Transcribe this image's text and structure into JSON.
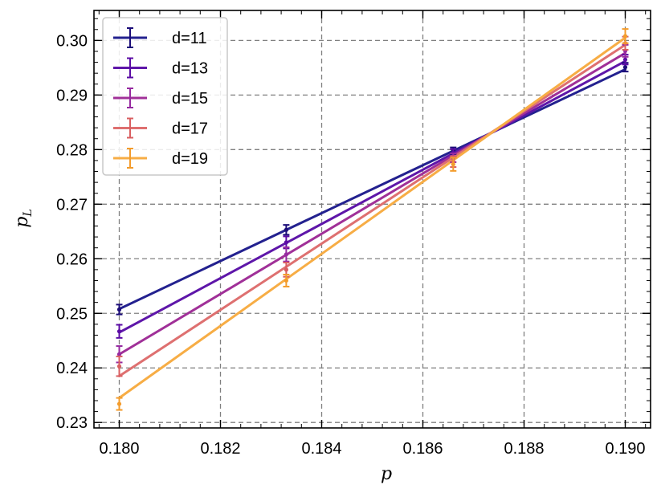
{
  "chart_data": {
    "type": "line",
    "xlabel": "p",
    "ylabel": "p",
    "ylabel_subscript": "L",
    "xlim": [
      0.1795,
      0.1905
    ],
    "ylim": [
      0.229,
      0.3055
    ],
    "xticks": [
      0.18,
      0.182,
      0.184,
      0.186,
      0.188,
      0.19
    ],
    "xtick_labels": [
      "0.180",
      "0.182",
      "0.184",
      "0.186",
      "0.188",
      "0.190"
    ],
    "yticks": [
      0.23,
      0.24,
      0.25,
      0.26,
      0.27,
      0.28,
      0.29,
      0.3
    ],
    "ytick_labels": [
      "0.23",
      "0.24",
      "0.25",
      "0.26",
      "0.27",
      "0.28",
      "0.29",
      "0.30"
    ],
    "grid": true,
    "legend_position": "top-left",
    "x": [
      0.18,
      0.1833,
      0.1866,
      0.19
    ],
    "series": [
      {
        "name": "d=11",
        "color": "#1b0c78",
        "line_color": "#23218f",
        "values": [
          0.2507,
          0.2653,
          0.2798,
          0.2951
        ],
        "errors": [
          0.0009,
          0.0009,
          0.0006,
          0.0008
        ],
        "fit": [
          [
            0.18,
            0.2508
          ],
          [
            0.19,
            0.2947
          ]
        ]
      },
      {
        "name": "d=13",
        "color": "#5b0ba5",
        "line_color": "#5e16a9",
        "values": [
          0.2467,
          0.263,
          0.2794,
          0.2965
        ],
        "errors": [
          0.0012,
          0.0011,
          0.0007,
          0.0009
        ],
        "fit": [
          [
            0.18,
            0.2465
          ],
          [
            0.19,
            0.2962
          ]
        ]
      },
      {
        "name": "d=15",
        "color": "#962aa0",
        "line_color": "#a03098",
        "values": [
          0.2425,
          0.2608,
          0.2785,
          0.2981
        ],
        "errors": [
          0.0015,
          0.0013,
          0.0008,
          0.0011
        ],
        "fit": [
          [
            0.18,
            0.2425
          ],
          [
            0.19,
            0.2977
          ]
        ]
      },
      {
        "name": "d=17",
        "color": "#d95f61",
        "line_color": "#de7070",
        "values": [
          0.2403,
          0.258,
          0.2778,
          0.2995
        ],
        "errors": [
          0.0018,
          0.0013,
          0.001,
          0.0012
        ],
        "fit": [
          [
            0.18,
            0.2385
          ],
          [
            0.19,
            0.2992
          ]
        ]
      },
      {
        "name": "d=19",
        "color": "#f39c2c",
        "line_color": "#f7ad45",
        "values": [
          0.2334,
          0.256,
          0.2773,
          0.3008
        ],
        "errors": [
          0.0011,
          0.0011,
          0.0012,
          0.0013
        ],
        "fit": [
          [
            0.18,
            0.2345
          ],
          [
            0.19,
            0.3005
          ]
        ]
      }
    ]
  }
}
